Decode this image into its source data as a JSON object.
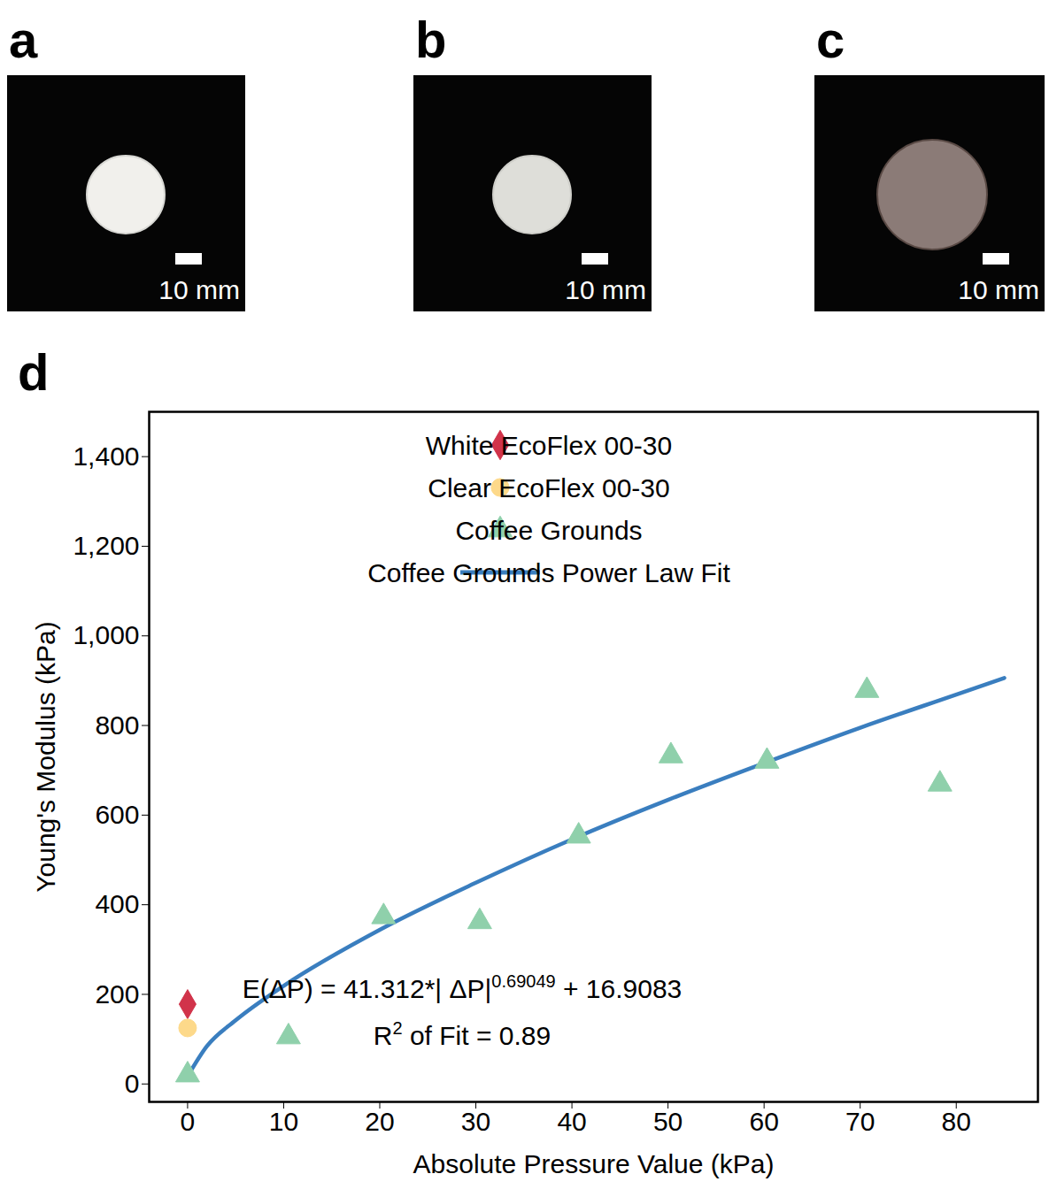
{
  "figure": {
    "panels": [
      {
        "label": "a",
        "scale_bar": "10 mm"
      },
      {
        "label": "b",
        "scale_bar": "10 mm"
      },
      {
        "label": "c",
        "scale_bar": "10 mm"
      },
      {
        "label": "d"
      }
    ]
  },
  "chart_data": {
    "type": "scatter",
    "x_label": "Absolute Pressure Value (kPa)",
    "y_label": "Young's Modulus (kPa)",
    "xlim": [
      -4,
      88.5
    ],
    "ylim": [
      -40,
      1500
    ],
    "xticks": [
      0,
      10,
      20,
      30,
      40,
      50,
      60,
      70,
      80
    ],
    "yticks": [
      0,
      200,
      400,
      600,
      800,
      1000,
      1200,
      1400
    ],
    "grid": false,
    "legend": "top-right",
    "series": [
      {
        "name": "White EcoFlex 00-30",
        "type": "scatter",
        "marker": "diamond",
        "color": "#d1334a",
        "x": [
          0
        ],
        "values": [
          178
        ]
      },
      {
        "name": "Clear EcoFlex 00-30",
        "type": "scatter",
        "marker": "circle",
        "color": "#fdd98a",
        "x": [
          0
        ],
        "values": [
          125
        ]
      },
      {
        "name": "Coffee Grounds",
        "type": "scatter",
        "marker": "triangle",
        "color": "#8fd0ab",
        "x": [
          0,
          10.5,
          20.4,
          30.4,
          40.7,
          50.3,
          60.3,
          70.7,
          78.3
        ],
        "values": [
          20,
          105,
          373,
          362,
          553,
          732,
          720,
          878,
          669
        ]
      },
      {
        "name": "Coffee Grounds Power Law Fit",
        "type": "line",
        "line_style": "solid",
        "color": "#3a7ebf",
        "x": [
          0,
          2,
          5,
          10,
          20,
          30,
          40,
          50,
          60,
          70,
          80,
          85
        ],
        "values": [
          17,
          84,
          142,
          219,
          344,
          449,
          546,
          634,
          716,
          795,
          869,
          906
        ]
      }
    ],
    "annotations": [
      {
        "parts": [
          {
            "text": "E(ΔP) = 41.312*| ΔP|"
          },
          {
            "text": "0.69049",
            "superscript": true
          },
          {
            "text": " + 16.9083"
          }
        ]
      },
      {
        "parts": [
          {
            "text": "R"
          },
          {
            "text": "2",
            "superscript": true
          },
          {
            "text": " of Fit = 0.89"
          }
        ]
      }
    ]
  }
}
